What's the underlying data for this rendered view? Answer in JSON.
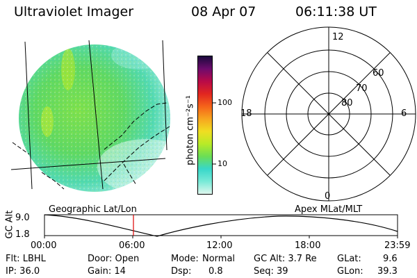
{
  "header": {
    "instrument": "Ultraviolet Imager",
    "date": "08 Apr 07",
    "time": "06:11:38 UT"
  },
  "colorbar": {
    "unit_label": "photon cm⁻²s⁻¹",
    "ticks": [
      "100",
      "10"
    ],
    "stops": [
      "#dff7ee",
      "#78ead7",
      "#38d7c9",
      "#6bde55",
      "#b8ea27",
      "#f0de22",
      "#f7a51f",
      "#f5631a",
      "#e12620",
      "#b90a48",
      "#6d0b6d",
      "#1a0a3c"
    ]
  },
  "polar_plot": {
    "top_label": "12",
    "left_label": "18",
    "right_label": "6",
    "bottom_label": "0",
    "ring_labels": [
      "60",
      "70",
      "80"
    ]
  },
  "map_labels": {
    "left": "Geographic Lat/Lon",
    "right": "Apex MLat/MLT"
  },
  "altitude_plot": {
    "axis_label": "GC Alt",
    "y_top": "9.0",
    "y_bottom": "1.8",
    "x_ticks": [
      "00:00",
      "06:00",
      "12:00",
      "18:00",
      "23:59"
    ],
    "marker_color": "#dd0000"
  },
  "info": {
    "flt": "Flt: LBHL",
    "ip": "IP: 36.0",
    "door": "Door: Open",
    "gain": "Gain: 14",
    "mode_label": "Mode:",
    "mode_value": "Normal",
    "dsp_label": "Dsp:",
    "dsp_value": "0.8",
    "gc_alt": "GC Alt: 3.7 Re",
    "seq": "Seq: 39",
    "glat_label": "GLat:",
    "glat_value": "9.6",
    "glon_label": "GLon:",
    "glon_value": "39.3"
  }
}
